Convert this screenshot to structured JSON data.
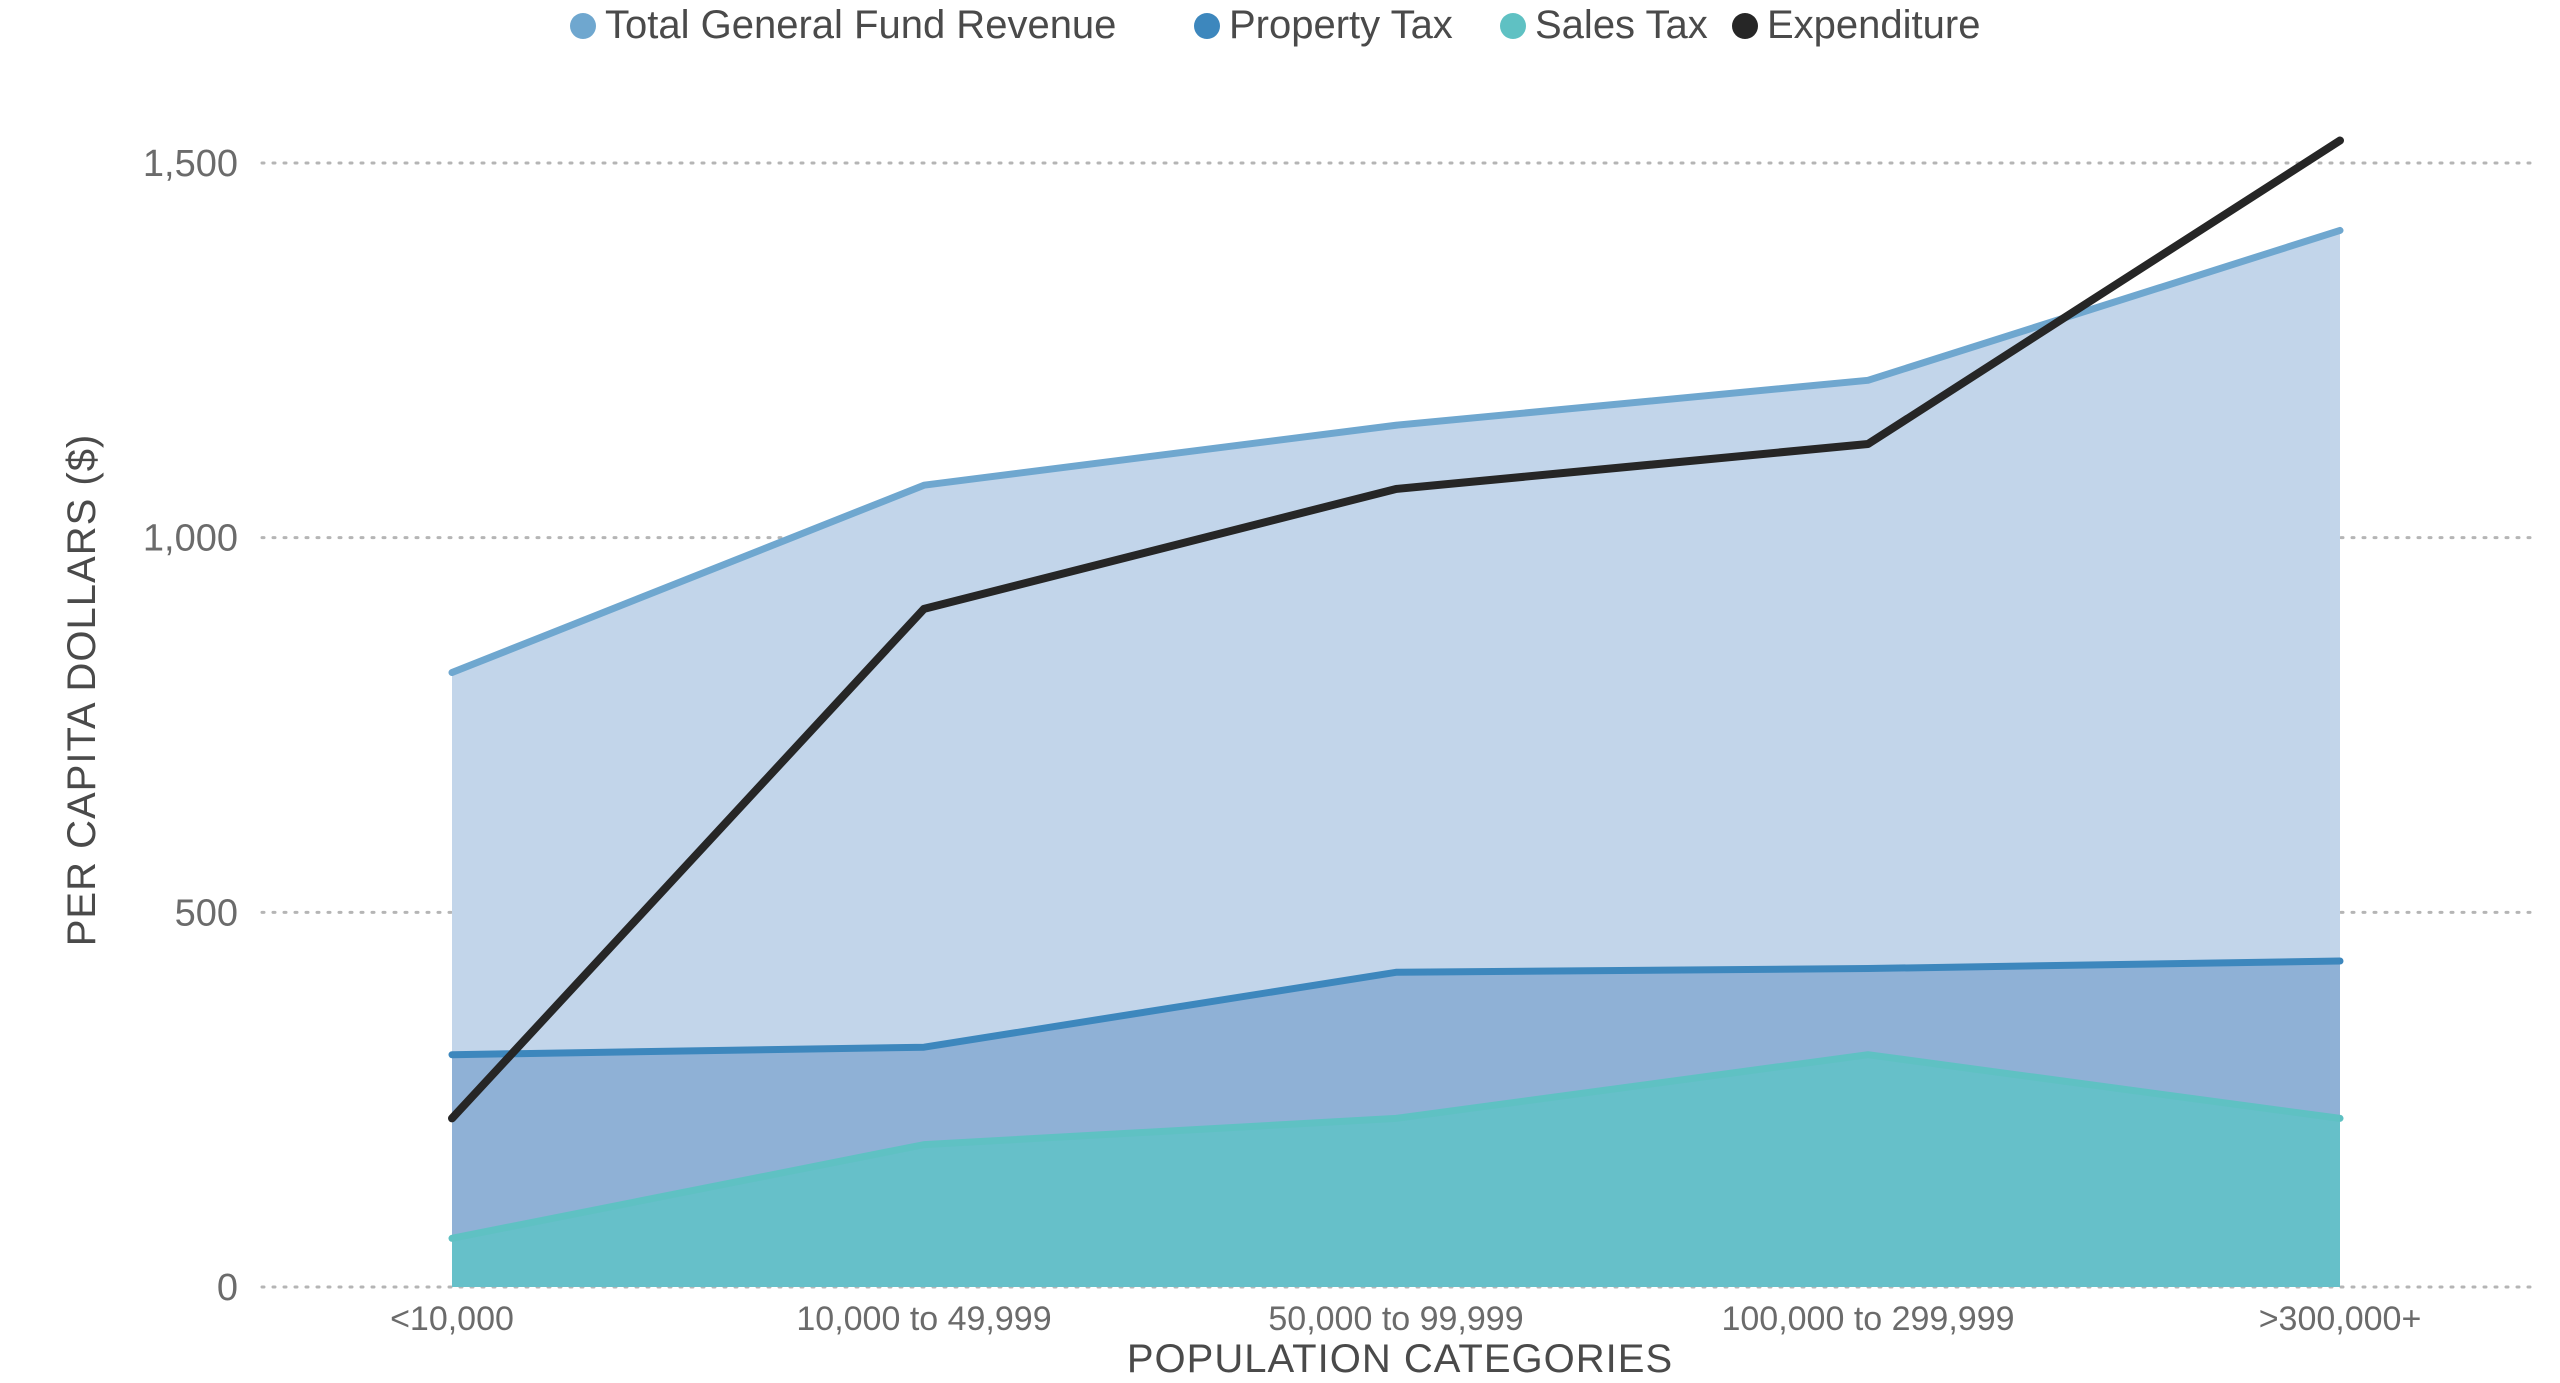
{
  "chart_data": {
    "type": "area",
    "title": "",
    "xlabel": "POPULATION CATEGORIES",
    "ylabel": "PER CAPITA DOLLARS ($)",
    "ylim": [
      0,
      1500
    ],
    "yticks": [
      0,
      500,
      1000,
      1500
    ],
    "ytick_labels": [
      "0",
      "500",
      "1,000",
      "1,500"
    ],
    "categories": [
      "<10,000",
      "10,000 to 49,999",
      "50,000 to 99,999",
      "100,000 to 299,999",
      ">300,000+"
    ],
    "grid": true,
    "legend_position": "top-center",
    "series": [
      {
        "name": "Total General Fund Revenue",
        "type": "area",
        "values": [
          820,
          1070,
          1150,
          1210,
          1410
        ],
        "line_color": "#6fa7cf",
        "fill_color": "#c2d5ea",
        "legend_color": "#6fa7cf"
      },
      {
        "name": "Property Tax",
        "type": "area",
        "values": [
          310,
          320,
          420,
          425,
          435
        ],
        "line_color": "#3d87bd",
        "fill_color": "#8fb1d6",
        "legend_color": "#3d87bd"
      },
      {
        "name": "Sales Tax",
        "type": "area",
        "values": [
          65,
          190,
          225,
          310,
          225
        ],
        "line_color": "#5fc1c3",
        "fill_color": "#66c0c9",
        "legend_color": "#5fc1c3"
      },
      {
        "name": "Expenditure",
        "type": "line",
        "values": [
          225,
          905,
          1065,
          1125,
          1530
        ],
        "line_color": "#262626",
        "legend_color": "#262626"
      }
    ]
  }
}
